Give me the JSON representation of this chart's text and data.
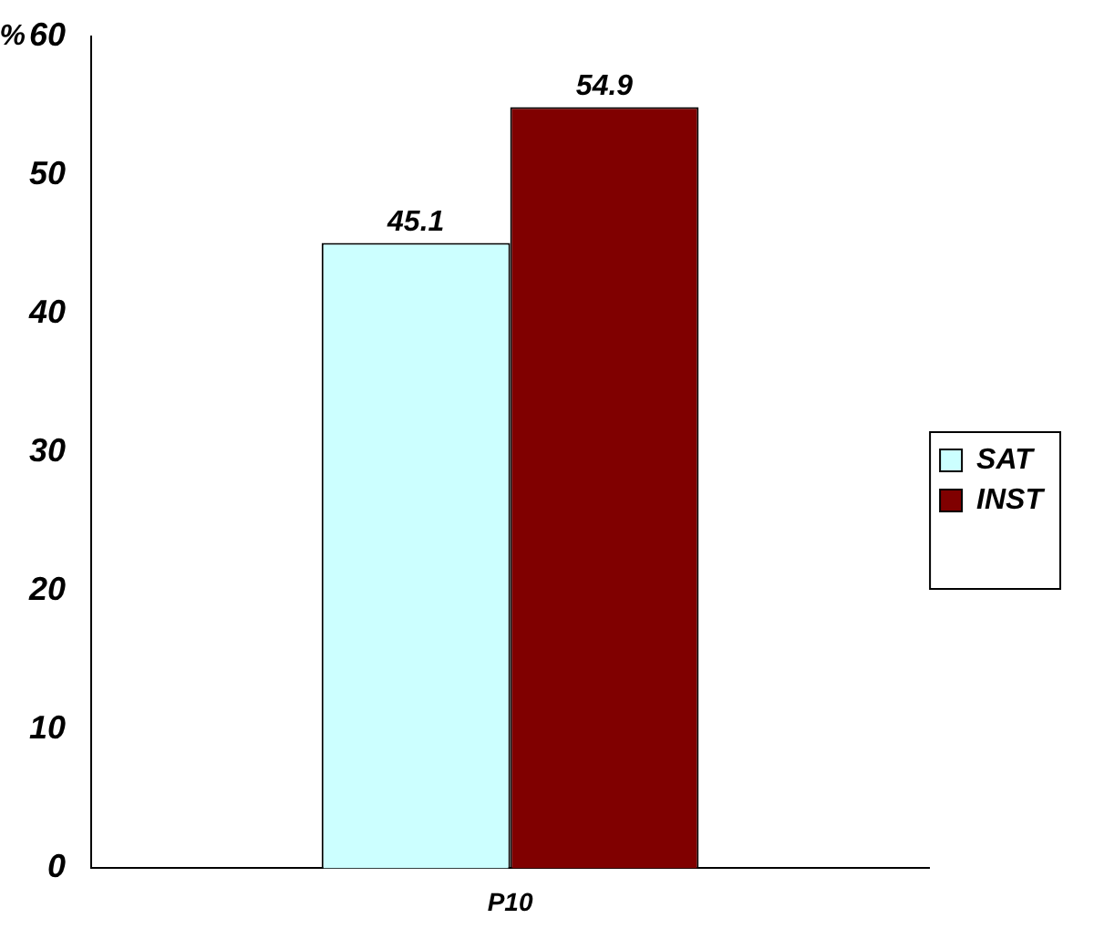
{
  "chart_data": {
    "type": "bar",
    "ylabel": "%",
    "categories": [
      "P10"
    ],
    "series": [
      {
        "name": "SAT",
        "color": "#ccffff",
        "values": [
          45.1
        ]
      },
      {
        "name": "INST",
        "color": "#800000",
        "values": [
          54.9
        ]
      }
    ],
    "ylim": [
      0,
      60
    ],
    "yticks": [
      0,
      10,
      20,
      30,
      40,
      50,
      60
    ],
    "grid": false,
    "legend": "right",
    "data_labels": true
  }
}
